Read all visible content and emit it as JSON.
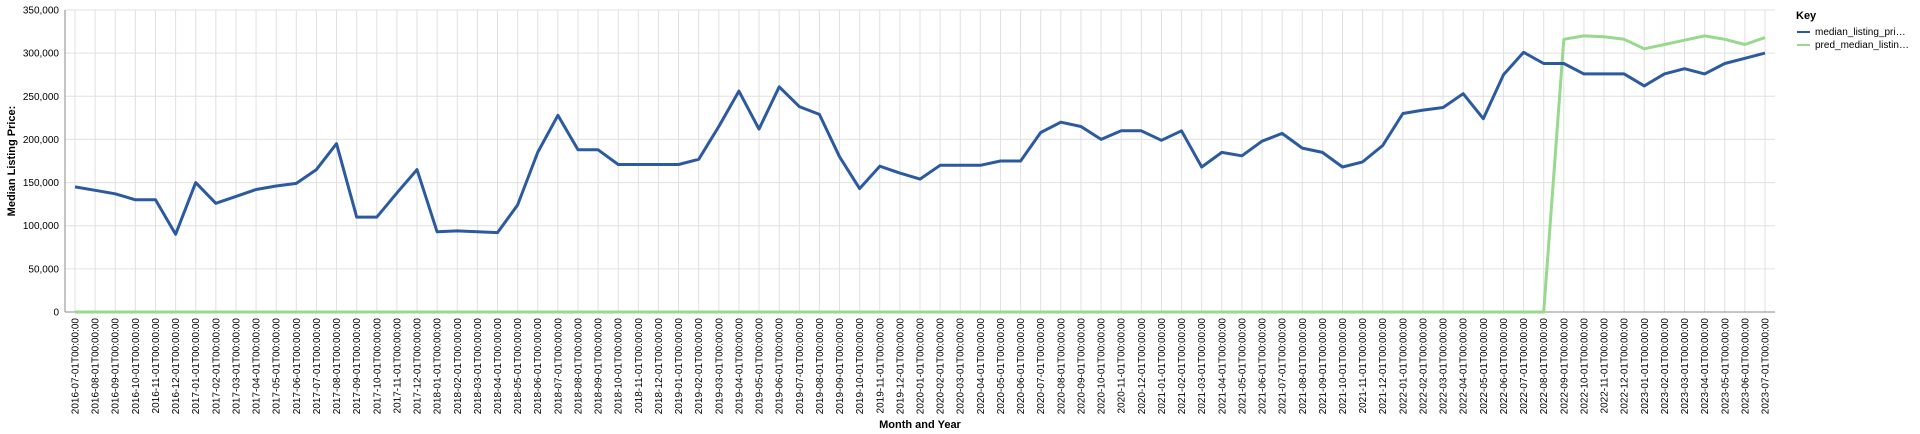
{
  "chart_data": {
    "type": "line",
    "xlabel": "Month and Year",
    "ylabel": "Median Listing Price:",
    "ylim": [
      0,
      350000
    ],
    "y_ticks": [
      "0",
      "50,000",
      "100,000",
      "150,000",
      "200,000",
      "250,000",
      "300,000",
      "350,000"
    ],
    "y_tick_values": [
      0,
      50000,
      100000,
      150000,
      200000,
      250000,
      300000,
      350000
    ],
    "grid": true,
    "legend_position": "right",
    "legend_title": "Key",
    "x": [
      "2016-07-01T00:00:00",
      "2016-08-01T00:00:00",
      "2016-09-01T00:00:00",
      "2016-10-01T00:00:00",
      "2016-11-01T00:00:00",
      "2016-12-01T00:00:00",
      "2017-01-01T00:00:00",
      "2017-02-01T00:00:00",
      "2017-03-01T00:00:00",
      "2017-04-01T00:00:00",
      "2017-05-01T00:00:00",
      "2017-06-01T00:00:00",
      "2017-07-01T00:00:00",
      "2017-08-01T00:00:00",
      "2017-09-01T00:00:00",
      "2017-10-01T00:00:00",
      "2017-11-01T00:00:00",
      "2017-12-01T00:00:00",
      "2018-01-01T00:00:00",
      "2018-02-01T00:00:00",
      "2018-03-01T00:00:00",
      "2018-04-01T00:00:00",
      "2018-05-01T00:00:00",
      "2018-06-01T00:00:00",
      "2018-07-01T00:00:00",
      "2018-08-01T00:00:00",
      "2018-09-01T00:00:00",
      "2018-10-01T00:00:00",
      "2018-11-01T00:00:00",
      "2018-12-01T00:00:00",
      "2019-01-01T00:00:00",
      "2019-02-01T00:00:00",
      "2019-03-01T00:00:00",
      "2019-04-01T00:00:00",
      "2019-05-01T00:00:00",
      "2019-06-01T00:00:00",
      "2019-07-01T00:00:00",
      "2019-08-01T00:00:00",
      "2019-09-01T00:00:00",
      "2019-10-01T00:00:00",
      "2019-11-01T00:00:00",
      "2019-12-01T00:00:00",
      "2020-01-01T00:00:00",
      "2020-02-01T00:00:00",
      "2020-03-01T00:00:00",
      "2020-04-01T00:00:00",
      "2020-05-01T00:00:00",
      "2020-06-01T00:00:00",
      "2020-07-01T00:00:00",
      "2020-08-01T00:00:00",
      "2020-09-01T00:00:00",
      "2020-10-01T00:00:00",
      "2020-11-01T00:00:00",
      "2020-12-01T00:00:00",
      "2021-01-01T00:00:00",
      "2021-02-01T00:00:00",
      "2021-03-01T00:00:00",
      "2021-04-01T00:00:00",
      "2021-05-01T00:00:00",
      "2021-06-01T00:00:00",
      "2021-07-01T00:00:00",
      "2021-08-01T00:00:00",
      "2021-09-01T00:00:00",
      "2021-10-01T00:00:00",
      "2021-11-01T00:00:00",
      "2021-12-01T00:00:00",
      "2022-01-01T00:00:00",
      "2022-02-01T00:00:00",
      "2022-03-01T00:00:00",
      "2022-04-01T00:00:00",
      "2022-05-01T00:00:00",
      "2022-06-01T00:00:00",
      "2022-07-01T00:00:00",
      "2022-08-01T00:00:00",
      "2022-09-01T00:00:00",
      "2022-10-01T00:00:00",
      "2022-11-01T00:00:00",
      "2022-12-01T00:00:00",
      "2023-01-01T00:00:00",
      "2023-02-01T00:00:00",
      "2023-03-01T00:00:00",
      "2023-04-01T00:00:00",
      "2023-05-01T00:00:00",
      "2023-06-01T00:00:00",
      "2023-07-01T00:00:00"
    ],
    "series": [
      {
        "name": "median_listing_pri…",
        "color": "#2c5aa0",
        "values": [
          145000,
          141000,
          137000,
          130000,
          130000,
          90000,
          150000,
          126000,
          134000,
          142000,
          146000,
          149000,
          165000,
          195000,
          110000,
          110000,
          138000,
          165000,
          93000,
          94000,
          93000,
          92000,
          124000,
          185000,
          228000,
          188000,
          188000,
          171000,
          171000,
          171000,
          171000,
          177000,
          215000,
          256000,
          212000,
          261000,
          238000,
          229000,
          180000,
          143000,
          169000,
          161000,
          154000,
          170000,
          170000,
          170000,
          175000,
          175000,
          208000,
          220000,
          215000,
          200000,
          210000,
          210000,
          199000,
          210000,
          168000,
          185000,
          181000,
          198000,
          207000,
          190000,
          185000,
          168000,
          174000,
          193000,
          230000,
          234000,
          237000,
          253000,
          224000,
          275000,
          301000,
          288000,
          288000,
          276000,
          276000,
          276000,
          262000,
          276000,
          282000,
          276000,
          288000,
          294000,
          300000
        ]
      },
      {
        "name": "pred_median_listin…",
        "color": "#98d98e",
        "values": [
          0,
          0,
          0,
          0,
          0,
          0,
          0,
          0,
          0,
          0,
          0,
          0,
          0,
          0,
          0,
          0,
          0,
          0,
          0,
          0,
          0,
          0,
          0,
          0,
          0,
          0,
          0,
          0,
          0,
          0,
          0,
          0,
          0,
          0,
          0,
          0,
          0,
          0,
          0,
          0,
          0,
          0,
          0,
          0,
          0,
          0,
          0,
          0,
          0,
          0,
          0,
          0,
          0,
          0,
          0,
          0,
          0,
          0,
          0,
          0,
          0,
          0,
          0,
          0,
          0,
          0,
          0,
          0,
          0,
          0,
          0,
          0,
          0,
          0,
          316000,
          320000,
          319000,
          316000,
          305000,
          310000,
          315000,
          320000,
          316000,
          310000,
          318000
        ]
      }
    ]
  }
}
